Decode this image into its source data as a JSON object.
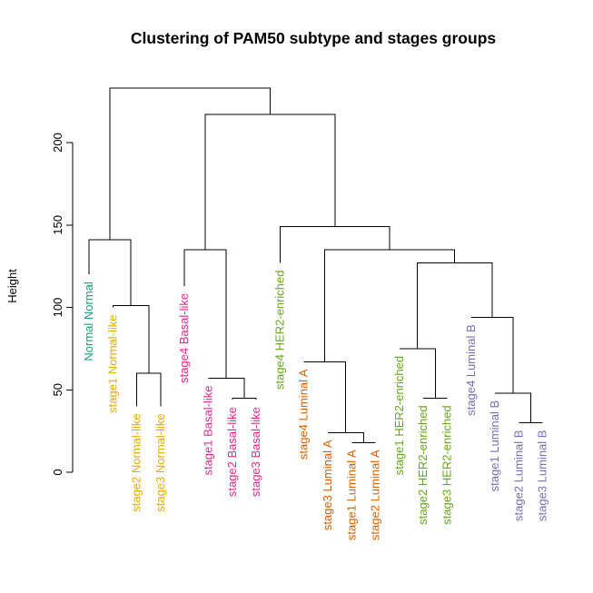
{
  "chart_data": {
    "type": "dendrogram",
    "title": "Clustering of PAM50 subtype and stages groups",
    "ylabel": "Height",
    "xlabel": "",
    "ylim": [
      0,
      235
    ],
    "yticks": [
      0,
      50,
      100,
      150,
      200
    ],
    "leaves": [
      {
        "label": "Normal Normal",
        "color": "#1b9e77",
        "height": 120
      },
      {
        "label": "stage1 Normal-like",
        "color": "#e6ab02",
        "height": 100
      },
      {
        "label": "stage2 Normal-like",
        "color": "#e6ab02",
        "height": 40
      },
      {
        "label": "stage3 Normal-like",
        "color": "#e6ab02",
        "height": 40
      },
      {
        "label": "stage4 Basal-like",
        "color": "#e7298a",
        "height": 113
      },
      {
        "label": "stage1 Basal-like",
        "color": "#e7298a",
        "height": 57
      },
      {
        "label": "stage2 Basal-like",
        "color": "#e7298a",
        "height": 44
      },
      {
        "label": "stage3 Basal-like",
        "color": "#e7298a",
        "height": 44
      },
      {
        "label": "stage4 HER2-enriched",
        "color": "#66a61e",
        "height": 127
      },
      {
        "label": "stage4 Luminal A",
        "color": "#d95f02",
        "height": 67
      },
      {
        "label": "stage3 Luminal A",
        "color": "#d95f02",
        "height": 24
      },
      {
        "label": "stage1 Luminal A",
        "color": "#d95f02",
        "height": 18
      },
      {
        "label": "stage2 Luminal A",
        "color": "#d95f02",
        "height": 18
      },
      {
        "label": "stage1 HER2-enriched",
        "color": "#66a61e",
        "height": 75
      },
      {
        "label": "stage2 HER2-enriched",
        "color": "#66a61e",
        "height": 45
      },
      {
        "label": "stage3 HER2-enriched",
        "color": "#66a61e",
        "height": 45
      },
      {
        "label": "stage4 Luminal B",
        "color": "#7570b3",
        "height": 94
      },
      {
        "label": "stage1 Luminal B",
        "color": "#7570b3",
        "height": 48
      },
      {
        "label": "stage2 Luminal B",
        "color": "#7570b3",
        "height": 30
      },
      {
        "label": "stage3 Luminal B",
        "color": "#7570b3",
        "height": 30
      }
    ],
    "merges": [
      {
        "left": 2,
        "right": 3,
        "height": 60
      },
      {
        "left": 1,
        "right": "m0",
        "height": 101
      },
      {
        "left": 0,
        "right": "m1",
        "height": 141
      },
      {
        "left": 6,
        "right": 7,
        "height": 45
      },
      {
        "left": 5,
        "right": "m3",
        "height": 57
      },
      {
        "left": 4,
        "right": "m4",
        "height": 135
      },
      {
        "left": 11,
        "right": 12,
        "height": 18
      },
      {
        "left": 10,
        "right": "m6",
        "height": 24
      },
      {
        "left": 9,
        "right": "m7",
        "height": 67
      },
      {
        "left": 14,
        "right": 15,
        "height": 45
      },
      {
        "left": 13,
        "right": "m9",
        "height": 75
      },
      {
        "left": 18,
        "right": 19,
        "height": 30
      },
      {
        "left": 17,
        "right": "m11",
        "height": 48
      },
      {
        "left": 16,
        "right": "m12",
        "height": 94
      },
      {
        "left": "m10",
        "right": "m13",
        "height": 127
      },
      {
        "left": "m8",
        "right": "m14",
        "height": 135
      },
      {
        "left": 8,
        "right": "m15",
        "height": 149
      },
      {
        "left": "m5",
        "right": "m16",
        "height": 217
      },
      {
        "left": "m2",
        "right": "m17",
        "height": 233
      }
    ]
  }
}
